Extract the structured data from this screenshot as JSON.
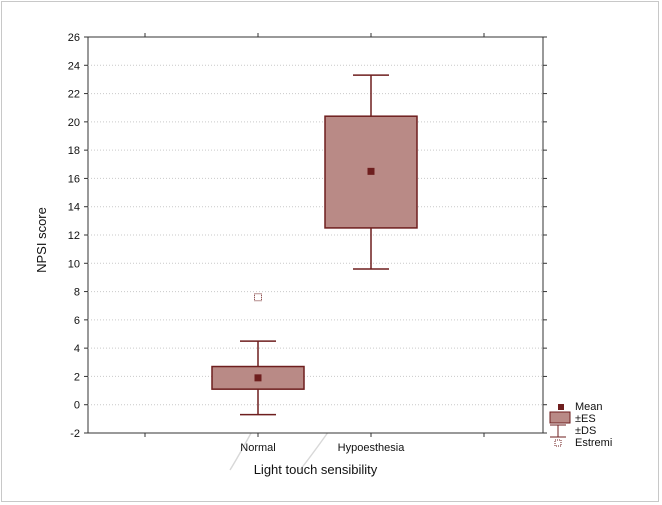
{
  "chart_data": {
    "type": "box",
    "xlabel": "Light touch sensibility",
    "ylabel": "NPSI score",
    "ylim": [
      -2,
      26
    ],
    "yticks": [
      -2,
      0,
      2,
      4,
      6,
      8,
      10,
      12,
      14,
      16,
      18,
      20,
      22,
      24,
      26
    ],
    "grid": true,
    "legend_position": "bottom-right",
    "categories": [
      "Normal",
      "Hypoesthesia"
    ],
    "groups": [
      {
        "label": "Normal",
        "mean": 1.9,
        "se_low": 1.1,
        "se_high": 2.7,
        "sd_low": -0.7,
        "sd_high": 4.5,
        "extremes": [
          7.6
        ]
      },
      {
        "label": "Hypoesthesia",
        "mean": 16.5,
        "se_low": 12.5,
        "se_high": 20.4,
        "sd_low": 9.6,
        "sd_high": 23.3,
        "extremes": []
      }
    ],
    "legend": [
      {
        "key": "mean",
        "label": "Mean"
      },
      {
        "key": "se",
        "label": "±ES"
      },
      {
        "key": "sd",
        "label": "±DS"
      },
      {
        "key": "extreme",
        "label": "Estremi"
      }
    ],
    "colors": {
      "box_fill": "#b98a86",
      "box_stroke": "#6e1e1e",
      "mean_marker": "#6e1e1e",
      "whisker": "#6e1e1e",
      "grid": "#c9c9c9",
      "axis": "#333333"
    }
  }
}
